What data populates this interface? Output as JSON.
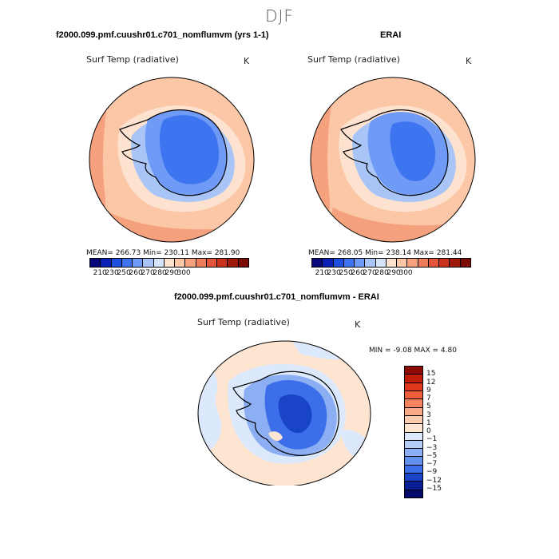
{
  "season": "DJF",
  "panels": {
    "model": {
      "title": "f2000.099.pmf.cuushr01.c701_nomflumvm (yrs 1-1)",
      "variable": "Surf Temp (radiative)",
      "units": "K",
      "stats": "MEAN= 266.73   Min= 230.11   Max= 281.90"
    },
    "obs": {
      "title": "ERAI",
      "variable": "Surf Temp (radiative)",
      "units": "K",
      "stats": "MEAN= 268.05   Min= 238.14   Max= 281.44"
    },
    "diff": {
      "title": "f2000.099.pmf.cuushr01.c701_nomflumvm - ERAI",
      "variable": "Surf Temp (radiative)",
      "units": "K",
      "stats": "MIN =   -9.08  MAX =    4.80"
    }
  },
  "colorbar_abs": {
    "labels": [
      "210",
      "230",
      "250",
      "260",
      "270",
      "280",
      "290",
      "300"
    ],
    "colors": [
      "#08087a",
      "#0a1fb4",
      "#1f4fe0",
      "#3d74f0",
      "#6f9af5",
      "#a9c5f7",
      "#d6e4fa",
      "#fde3cf",
      "#fbc7a6",
      "#f6a17e",
      "#ef7c5b",
      "#e4563a",
      "#c8321f",
      "#9e1b0c",
      "#7a0c05"
    ]
  },
  "colorbar_diff": {
    "labels": [
      "15",
      "12",
      "9",
      "7",
      "5",
      "3",
      "1",
      "0",
      "−1",
      "−3",
      "−5",
      "−7",
      "−9",
      "−12",
      "−15"
    ],
    "colors": [
      "#8e0a05",
      "#c21c0c",
      "#e0381c",
      "#ef5d3b",
      "#f4845f",
      "#f8a986",
      "#fcccb0",
      "#fde5d2",
      "#dce8fb",
      "#b5cdf7",
      "#8caff3",
      "#6391ef",
      "#3b6ee8",
      "#1a44c8",
      "#0a1f95",
      "#050a6a"
    ]
  },
  "colors": {
    "ocean_warm": "#f6a17e",
    "ocean_mid": "#fbc7a6",
    "ocean_pale": "#fde3cf",
    "ice_dark": "#3d74f0",
    "ice_mid": "#6f9af5",
    "ice_light": "#a9c5f7",
    "diff_neutral": "#fde5d2",
    "diff_light_blue": "#dce8fb",
    "diff_dark_blue": "#1a44c8"
  }
}
